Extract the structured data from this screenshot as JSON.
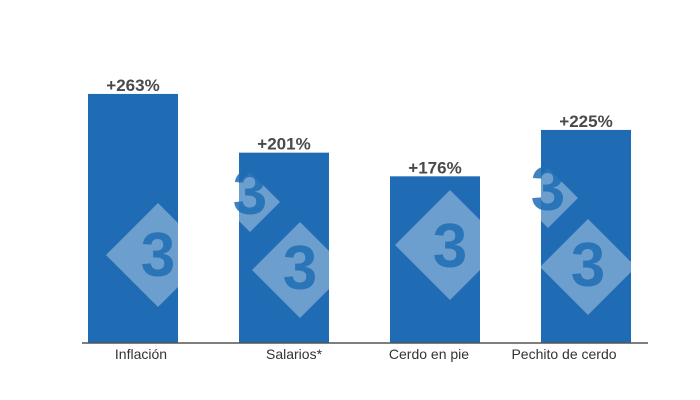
{
  "chart_data": {
    "type": "bar",
    "title": "",
    "xlabel": "",
    "ylabel": "",
    "categories": [
      "Inflación",
      "Salarios*",
      "Cerdo en pie",
      "Pechito de cerdo"
    ],
    "values": [
      263,
      201,
      176,
      225
    ],
    "data_labels": [
      "+263%",
      "+201%",
      "+176%",
      "+225%"
    ],
    "ylim": [
      0,
      280
    ],
    "grid": false,
    "legend": "none",
    "colors": {
      "bar": "#1f6cb4",
      "text": "#4a4a4a",
      "axis": "#555555"
    }
  },
  "watermark": {
    "text": "3"
  }
}
